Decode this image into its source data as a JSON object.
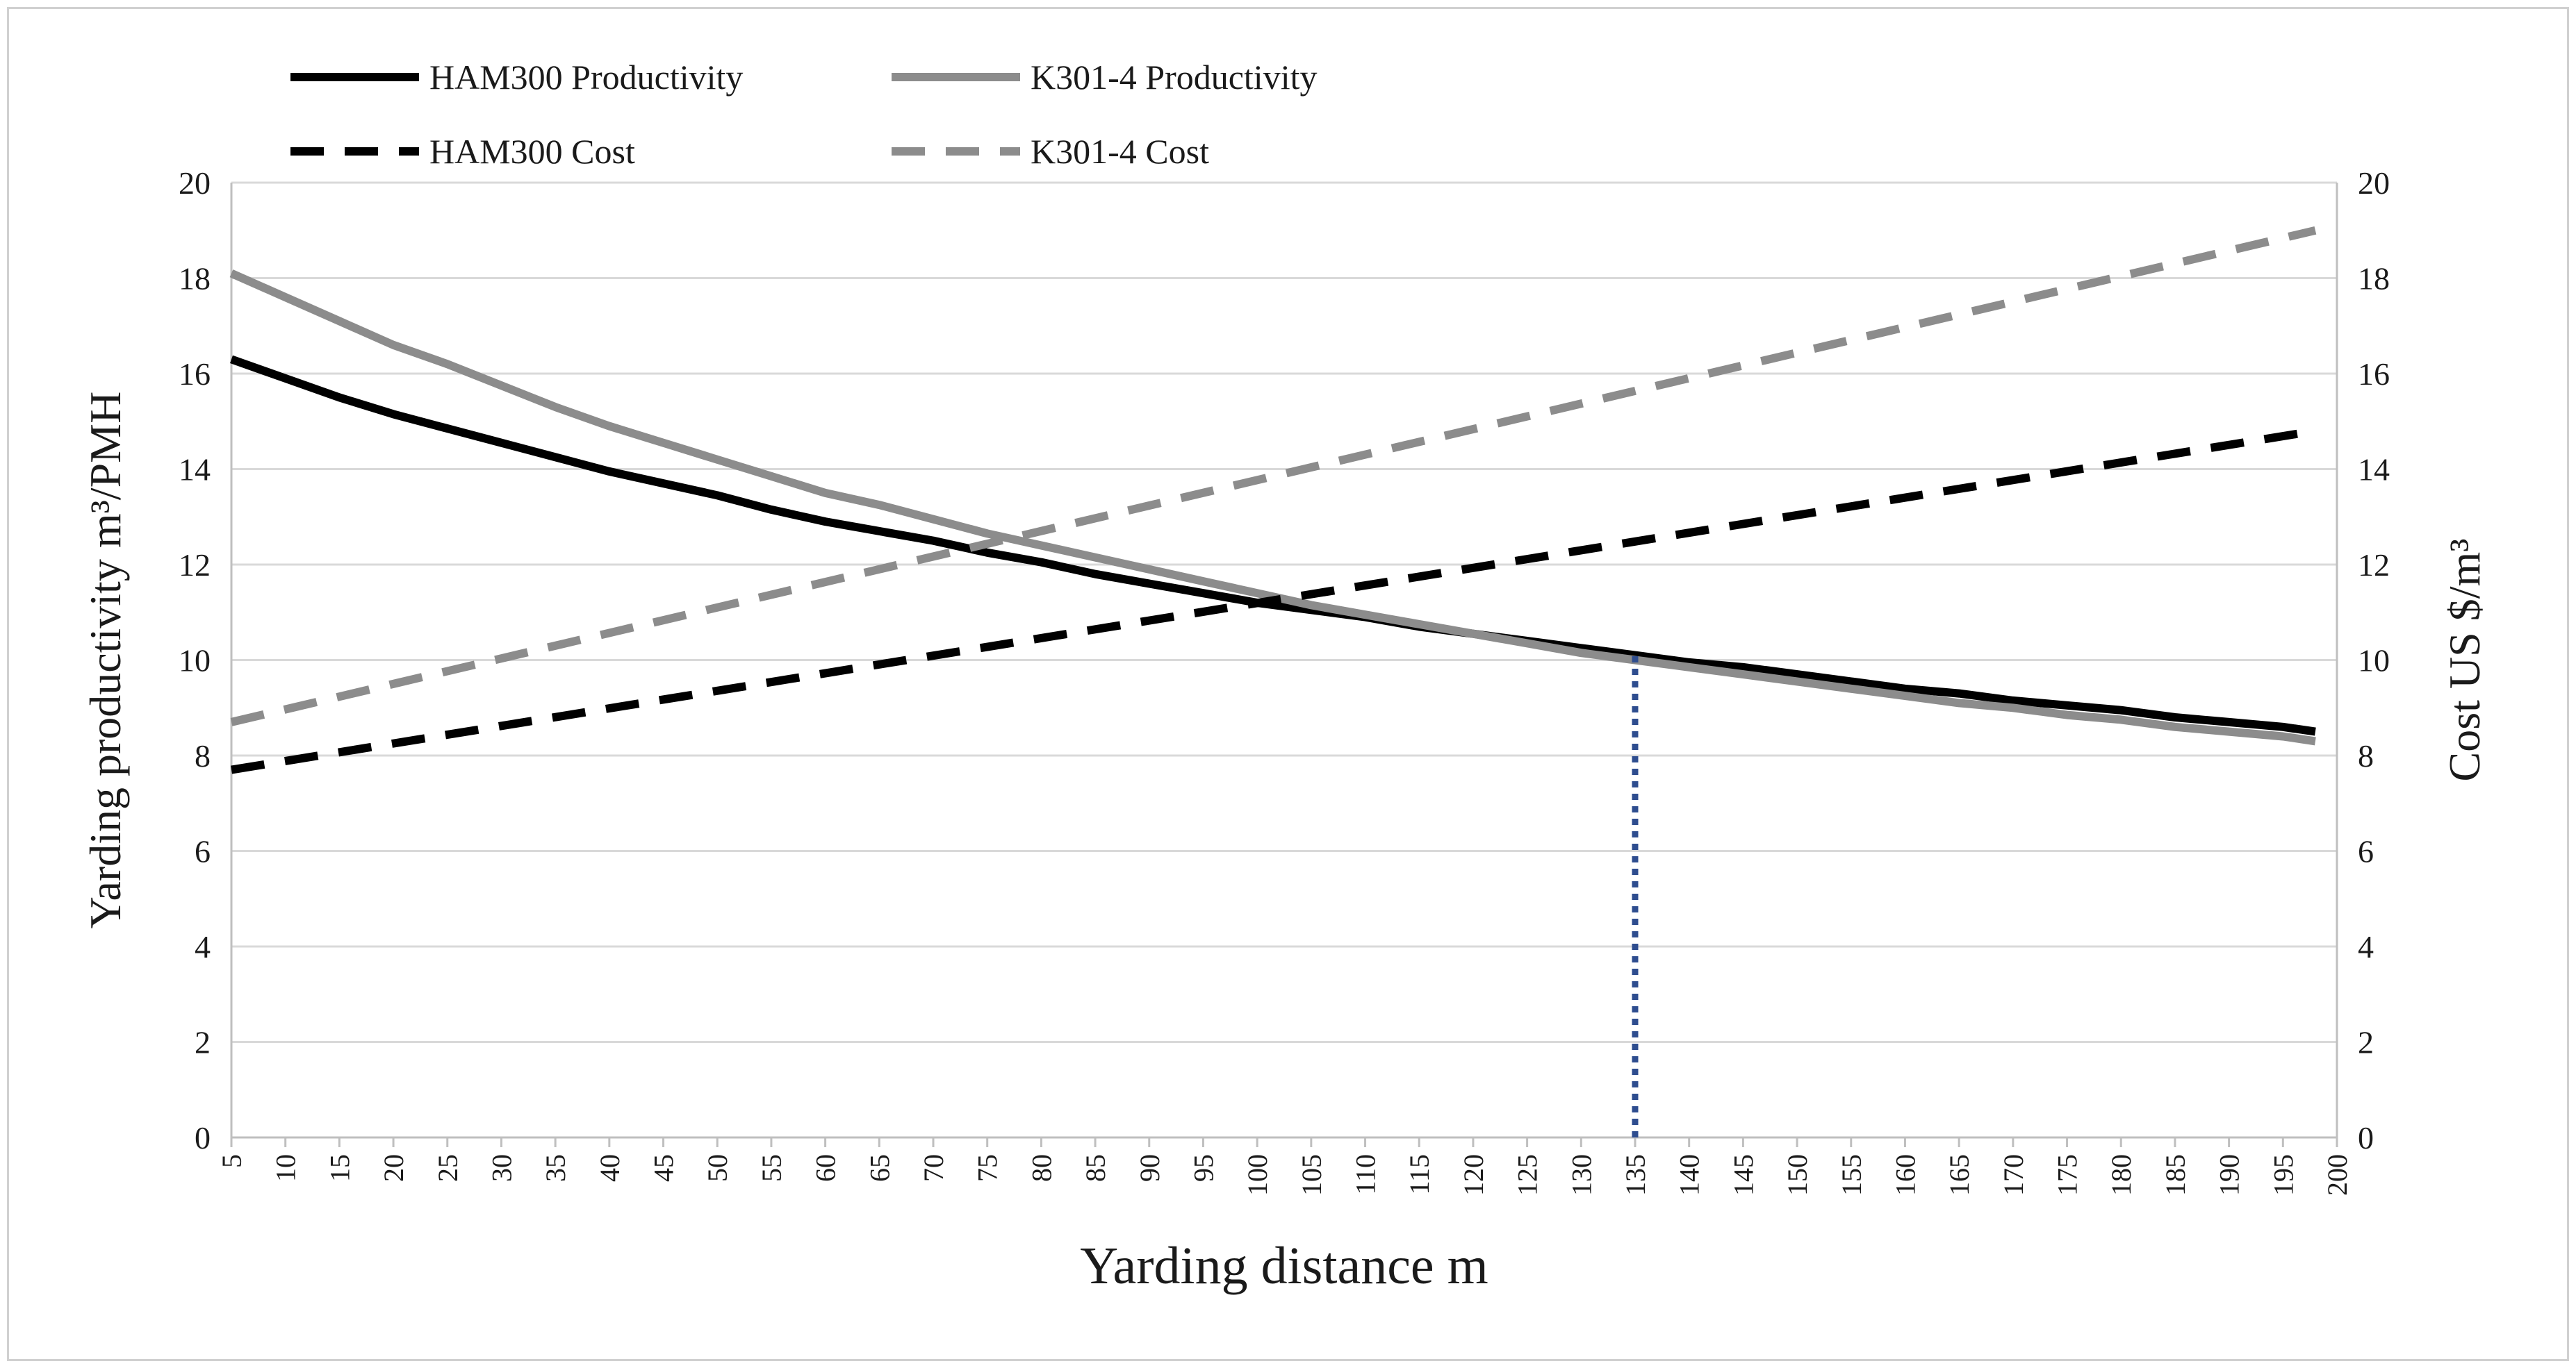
{
  "chart_data": {
    "type": "line",
    "title": "",
    "xlabel": "Yarding distance m",
    "ylabel_left": "Yarding productivity m³/PMH",
    "ylabel_right": "Cost US $/m³",
    "x_ticks": [
      5,
      10,
      15,
      20,
      25,
      30,
      35,
      40,
      45,
      50,
      55,
      60,
      65,
      70,
      75,
      80,
      85,
      90,
      95,
      100,
      105,
      110,
      115,
      120,
      125,
      130,
      135,
      140,
      145,
      150,
      155,
      160,
      165,
      170,
      175,
      180,
      185,
      190,
      195,
      200
    ],
    "y_left_ticks": [
      0,
      2,
      4,
      6,
      8,
      10,
      12,
      14,
      16,
      18,
      20
    ],
    "y_right_ticks": [
      0,
      2,
      4,
      6,
      8,
      10,
      12,
      14,
      16,
      18,
      20
    ],
    "ylim_left": [
      0,
      20
    ],
    "ylim_right": [
      0,
      20
    ],
    "xlim": [
      5,
      200
    ],
    "grid": "horizontal",
    "legend_position": "top-left",
    "series": [
      {
        "name": "HAM300 Productivity",
        "axis": "left",
        "style": "solid",
        "color": "#000000",
        "x": [
          5,
          10,
          15,
          20,
          25,
          30,
          35,
          40,
          45,
          50,
          55,
          60,
          65,
          70,
          75,
          80,
          85,
          90,
          95,
          100,
          105,
          110,
          115,
          120,
          125,
          130,
          135,
          140,
          145,
          150,
          155,
          160,
          165,
          170,
          175,
          180,
          185,
          190,
          195,
          198
        ],
        "values": [
          16.3,
          15.9,
          15.5,
          15.15,
          14.85,
          14.55,
          14.25,
          13.95,
          13.7,
          13.45,
          13.15,
          12.9,
          12.7,
          12.5,
          12.25,
          12.05,
          11.8,
          11.6,
          11.4,
          11.2,
          11.05,
          10.9,
          10.7,
          10.55,
          10.4,
          10.25,
          10.1,
          9.95,
          9.85,
          9.7,
          9.55,
          9.4,
          9.3,
          9.15,
          9.05,
          8.95,
          8.8,
          8.7,
          8.6,
          8.5
        ]
      },
      {
        "name": "K301-4 Productivity",
        "axis": "left",
        "style": "solid",
        "color": "#8c8c8c",
        "x": [
          5,
          10,
          15,
          20,
          25,
          30,
          35,
          40,
          45,
          50,
          55,
          60,
          65,
          70,
          75,
          80,
          85,
          90,
          95,
          100,
          105,
          110,
          115,
          120,
          125,
          130,
          135,
          140,
          145,
          150,
          155,
          160,
          165,
          170,
          175,
          180,
          185,
          190,
          195,
          198
        ],
        "values": [
          18.1,
          17.6,
          17.1,
          16.6,
          16.2,
          15.75,
          15.3,
          14.9,
          14.55,
          14.2,
          13.85,
          13.5,
          13.25,
          12.95,
          12.65,
          12.4,
          12.15,
          11.9,
          11.65,
          11.4,
          11.15,
          10.95,
          10.75,
          10.55,
          10.35,
          10.15,
          10.0,
          9.85,
          9.7,
          9.55,
          9.4,
          9.25,
          9.1,
          9.0,
          8.85,
          8.75,
          8.6,
          8.5,
          8.4,
          8.3
        ]
      },
      {
        "name": "HAM300 Cost",
        "axis": "right",
        "style": "dashed",
        "color": "#000000",
        "x": [
          5,
          198
        ],
        "values": [
          7.7,
          14.8
        ]
      },
      {
        "name": "K301-4 Cost",
        "axis": "right",
        "style": "dashed",
        "color": "#8c8c8c",
        "x": [
          5,
          198
        ],
        "values": [
          8.7,
          19.0
        ]
      }
    ],
    "reference_line": {
      "x": 135,
      "y_from": 0,
      "y_to": 10.1,
      "style": "dotted",
      "color": "#2e4d8f"
    }
  }
}
